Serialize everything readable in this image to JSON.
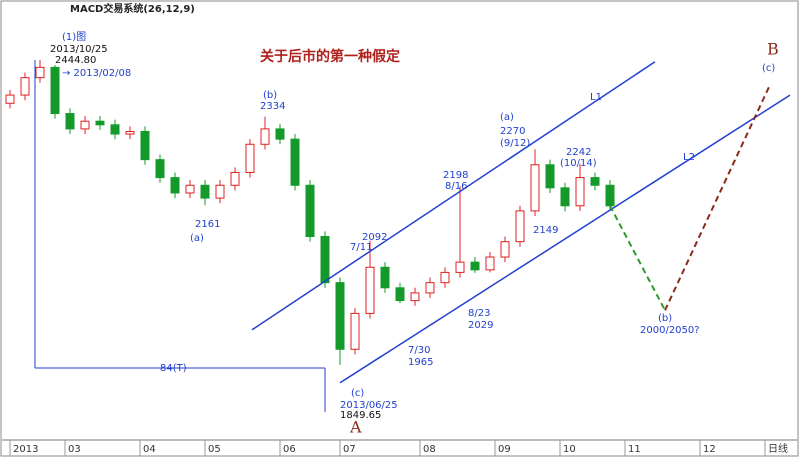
{
  "chart_data": {
    "type": "candlestick",
    "header": "MACD交易系统(26,12,9)",
    "title": "关于后市的第一种假定",
    "xlim": [
      0,
      155
    ],
    "ylim": [
      1703,
      2542
    ],
    "xticks": [
      {
        "value": 0,
        "label": "2013"
      },
      {
        "value": 11,
        "label": "03"
      },
      {
        "value": 26,
        "label": "04"
      },
      {
        "value": 39,
        "label": "05"
      },
      {
        "value": 54,
        "label": "06"
      },
      {
        "value": 66,
        "label": "07"
      },
      {
        "value": 82,
        "label": "08"
      },
      {
        "value": 97,
        "label": "09"
      },
      {
        "value": 110,
        "label": "10"
      },
      {
        "value": 123,
        "label": "11"
      },
      {
        "value": 138,
        "label": "12"
      },
      {
        "value": 151,
        "label": "日线"
      }
    ],
    "up_color": "#e02020",
    "down_color": "#139a2a",
    "x": [
      0,
      3,
      6,
      9,
      12,
      15,
      18,
      21,
      24,
      27,
      30,
      33,
      36,
      39,
      42,
      45,
      48,
      51,
      54,
      57,
      60,
      63,
      66,
      69,
      72,
      75,
      78,
      81,
      84,
      87,
      90,
      93,
      96,
      99,
      102,
      105,
      108,
      111,
      114,
      117,
      120
    ],
    "open": [
      2360,
      2376,
      2410,
      2430,
      2340,
      2310,
      2325,
      2318,
      2300,
      2305,
      2250,
      2215,
      2185,
      2200,
      2175,
      2200,
      2225,
      2280,
      2310,
      2290,
      2200,
      2100,
      2010,
      1880,
      1950,
      2040,
      2000,
      1975,
      1990,
      2010,
      2030,
      2050,
      2035,
      2060,
      2090,
      2150,
      2240,
      2195,
      2160,
      2215,
      2200
    ],
    "high": [
      2386,
      2420,
      2444.8,
      2435,
      2350,
      2335,
      2335,
      2328,
      2315,
      2315,
      2260,
      2225,
      2210,
      2210,
      2210,
      2235,
      2290,
      2334,
      2320,
      2300,
      2210,
      2110,
      2020,
      1960,
      2092,
      2050,
      2010,
      2000,
      2020,
      2040,
      2198,
      2060,
      2070,
      2100,
      2160,
      2270,
      2250,
      2205,
      2242,
      2225,
      2210
    ],
    "low": [
      2350,
      2366,
      2400,
      2330,
      2300,
      2300,
      2308,
      2290,
      2290,
      2240,
      2205,
      2175,
      2175,
      2161,
      2165,
      2190,
      2215,
      2270,
      2280,
      2190,
      2090,
      2000,
      1849.65,
      1870,
      1940,
      1990,
      1970,
      1965,
      1980,
      2000,
      2020,
      2029,
      2030,
      2050,
      2080,
      2140,
      2185,
      2149,
      2150,
      2190,
      2150
    ],
    "close": [
      2376,
      2410,
      2430,
      2340,
      2310,
      2325,
      2318,
      2300,
      2305,
      2250,
      2215,
      2185,
      2200,
      2175,
      2200,
      2225,
      2280,
      2310,
      2290,
      2200,
      2100,
      2010,
      1880,
      1950,
      2040,
      2000,
      1975,
      1990,
      2010,
      2030,
      2050,
      2035,
      2060,
      2090,
      2150,
      2240,
      2195,
      2160,
      2215,
      2200,
      2160
    ],
    "trend_lines": [
      {
        "name": "L1",
        "color": "#1f3fd0",
        "x": [
          48.4,
          129
        ],
        "values": [
          1918,
          2441
        ]
      },
      {
        "name": "L2",
        "color": "#1f3fd0",
        "x": [
          66,
          156
        ],
        "values": [
          1814.6,
          2376
        ]
      }
    ],
    "projection": {
      "x": [
        120,
        131,
        152
      ],
      "values": [
        2160,
        1956,
        2396
      ],
      "colors": [
        "#2e9a2e",
        "#8b2a1a"
      ]
    },
    "annotations": [
      "(1)图",
      "2013/10/25",
      "2444.80",
      "→ 2013/02/08",
      "B",
      "(c)",
      "(b)",
      "2334",
      "2161",
      "(a)",
      "(a)",
      "2270",
      "(9/12)",
      "2242",
      "(10/14)",
      "2198",
      "8/16",
      "2092",
      "7/11",
      "2149",
      "8/23",
      "2029",
      "7/30",
      "1965",
      "(b)",
      "2000/2050?",
      "84(T)",
      "(c)",
      "2013/06/25",
      "1849.65",
      "A"
    ]
  }
}
